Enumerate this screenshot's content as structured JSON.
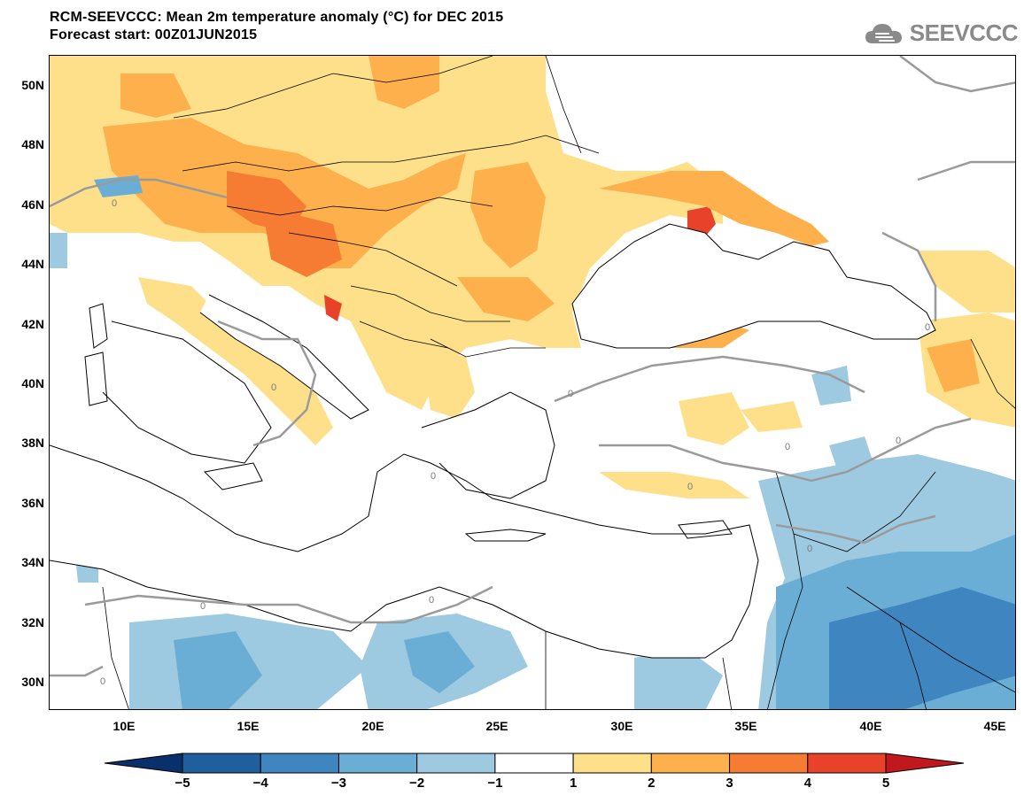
{
  "title": {
    "line1": "RCM-SEEVCCC: Mean 2m temperature anomaly (°C) for DEC 2015",
    "line2": "Forecast start: 00Z01JUN2015"
  },
  "logo": {
    "text": "SEEVCCC",
    "icon": "cloud-icon"
  },
  "map": {
    "lat_labels": [
      "50N",
      "48N",
      "46N",
      "44N",
      "42N",
      "40N",
      "38N",
      "36N",
      "34N",
      "32N",
      "30N"
    ],
    "lon_labels": [
      "10E",
      "15E",
      "20E",
      "25E",
      "30E",
      "35E",
      "40E",
      "45E"
    ],
    "contour_label": "0"
  },
  "colorbar": {
    "labels": [
      "-5",
      "-4",
      "-3",
      "-2",
      "-1",
      "1",
      "2",
      "3",
      "4",
      "5"
    ],
    "colors": [
      "#08306b",
      "#1f5f9e",
      "#3f86c0",
      "#6aaed6",
      "#9ecae1",
      "#ffffff",
      "#fee08b",
      "#fdb04c",
      "#f57c32",
      "#e8422b",
      "#c0181c"
    ]
  }
}
